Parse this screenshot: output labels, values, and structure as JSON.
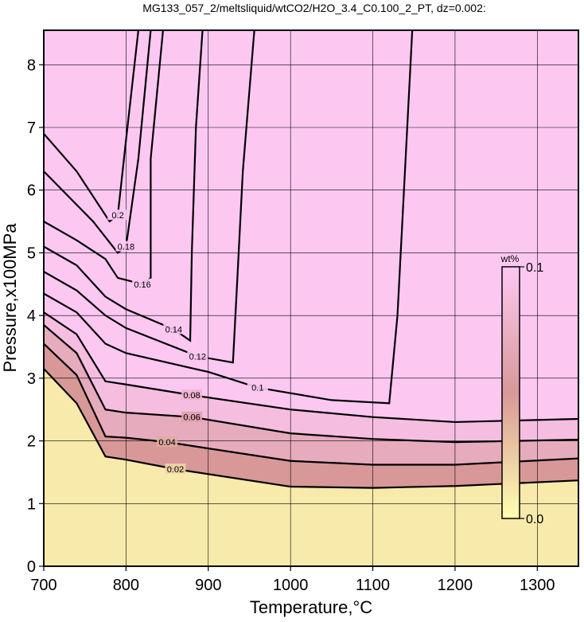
{
  "chart_data": {
    "type": "contour",
    "title": "MG133_057_2/meltsliquid/wtCO2/H2O_3.4_C0.100_2_PT, dz=0.002:",
    "x_label": "Temperature,°C",
    "y_label": "Pressure,x100MPa",
    "xlim": [
      700,
      1350
    ],
    "ylim": [
      0,
      8.55
    ],
    "xticks": [
      700,
      800,
      900,
      1000,
      1100,
      1200,
      1300
    ],
    "yticks": [
      0,
      1,
      2,
      3,
      4,
      5,
      6,
      7,
      8
    ],
    "grid": true,
    "series": [
      {
        "level": 0.02,
        "color": "#000000",
        "x": [
          700,
          740,
          775,
          800,
          860,
          1000,
          1100,
          1200,
          1350
        ],
        "y": [
          3.15,
          2.6,
          1.75,
          1.7,
          1.55,
          1.27,
          1.25,
          1.28,
          1.37
        ]
      },
      {
        "level": 0.04,
        "color": "#000000",
        "x": [
          700,
          740,
          775,
          800,
          850,
          1000,
          1100,
          1200,
          1350
        ],
        "y": [
          3.55,
          3.05,
          2.07,
          2.05,
          1.98,
          1.68,
          1.62,
          1.62,
          1.72
        ]
      },
      {
        "level": 0.06,
        "color": "#000000",
        "x": [
          700,
          740,
          775,
          800,
          880,
          1000,
          1100,
          1200,
          1350
        ],
        "y": [
          3.85,
          3.4,
          2.5,
          2.45,
          2.38,
          2.12,
          2.03,
          1.98,
          2.02
        ]
      },
      {
        "level": 0.08,
        "color": "#000000",
        "x": [
          700,
          740,
          775,
          800,
          880,
          1000,
          1100,
          1200,
          1350
        ],
        "y": [
          4.05,
          3.7,
          2.95,
          2.9,
          2.73,
          2.5,
          2.38,
          2.3,
          2.35
        ]
      },
      {
        "level": 0.1,
        "color": "#000000",
        "x": [
          700,
          740,
          775,
          800,
          900,
          960,
          1050,
          1120,
          1130,
          1148
        ],
        "y": [
          4.35,
          4.05,
          3.55,
          3.4,
          3.1,
          2.85,
          2.65,
          2.6,
          4.0,
          8.55
        ]
      },
      {
        "level": 0.12,
        "color": "#000000",
        "x": [
          700,
          740,
          775,
          800,
          887,
          930,
          935,
          942,
          956
        ],
        "y": [
          4.7,
          4.4,
          4.0,
          3.8,
          3.35,
          3.25,
          4.5,
          6.3,
          8.55
        ]
      },
      {
        "level": 0.14,
        "color": "#000000",
        "x": [
          700,
          740,
          775,
          800,
          858,
          878,
          880,
          885,
          893
        ],
        "y": [
          5.1,
          4.8,
          4.3,
          4.1,
          3.78,
          3.6,
          5.0,
          7.0,
          8.55
        ]
      },
      {
        "level": 0.16,
        "color": "#000000",
        "x": [
          700,
          740,
          775,
          790,
          820,
          830,
          830,
          845
        ],
        "y": [
          5.5,
          5.2,
          4.9,
          4.6,
          4.5,
          4.6,
          6.5,
          8.55
        ]
      },
      {
        "level": 0.18,
        "color": "#000000",
        "x": [
          700,
          760,
          790,
          800,
          815,
          830
        ],
        "y": [
          6.3,
          5.5,
          5.0,
          5.1,
          6.5,
          8.55
        ]
      },
      {
        "level": 0.2,
        "color": "#000000",
        "x": [
          700,
          740,
          780,
          790,
          800,
          815
        ],
        "y": [
          6.9,
          6.3,
          5.5,
          5.6,
          6.8,
          8.55
        ]
      }
    ],
    "colorbar": {
      "title": "wt%",
      "lim": [
        0,
        0.1
      ],
      "ticks": [
        {
          "value": 0,
          "label": "0.0"
        },
        0.1
      ],
      "colors": [
        "#ffffb0",
        "#d89898",
        "#fcc8f2"
      ]
    }
  }
}
